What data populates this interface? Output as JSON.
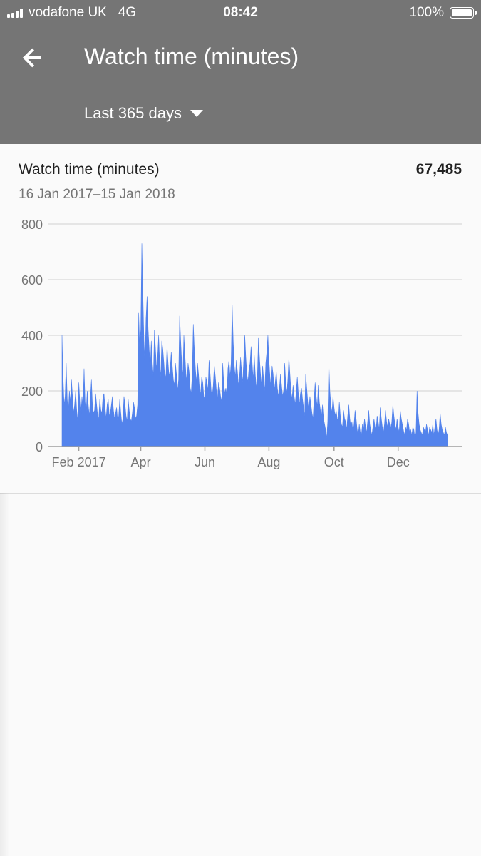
{
  "status_bar": {
    "carrier": "vodafone UK",
    "network": "4G",
    "time": "08:42",
    "battery": "100%",
    "battery_level": 1.0
  },
  "header": {
    "back_icon": "arrow-left-icon",
    "title": "Watch time (minutes)",
    "range_label": "Last 365 days",
    "range_icon": "caret-down-icon"
  },
  "card": {
    "metric_title": "Watch time (minutes)",
    "metric_total": "67,485",
    "date_range": "16 Jan 2017–15 Jan 2018"
  },
  "chart_data": {
    "type": "area",
    "title": "",
    "xlabel": "",
    "ylabel": "",
    "ylim": [
      0,
      800
    ],
    "yticks": [
      0,
      200,
      400,
      600,
      800
    ],
    "xticks": [
      {
        "label": "Feb 2017",
        "day": 16
      },
      {
        "label": "Apr",
        "day": 75
      },
      {
        "label": "Jun",
        "day": 136
      },
      {
        "label": "Aug",
        "day": 197
      },
      {
        "label": "Oct",
        "day": 259
      },
      {
        "label": "Dec",
        "day": 320
      }
    ],
    "grid": true,
    "color": "#5383ec",
    "values": [
      400,
      250,
      150,
      180,
      300,
      170,
      120,
      200,
      160,
      240,
      180,
      120,
      150,
      200,
      130,
      90,
      230,
      160,
      110,
      180,
      140,
      280,
      160,
      120,
      200,
      150,
      110,
      170,
      240,
      150,
      120,
      130,
      190,
      150,
      110,
      100,
      170,
      130,
      120,
      180,
      190,
      140,
      100,
      150,
      170,
      110,
      120,
      150,
      180,
      130,
      100,
      120,
      140,
      90,
      110,
      170,
      120,
      80,
      100,
      180,
      150,
      110,
      90,
      170,
      130,
      100,
      90,
      120,
      160,
      140,
      100,
      110,
      150,
      480,
      350,
      420,
      730,
      550,
      380,
      300,
      460,
      540,
      420,
      350,
      280,
      380,
      300,
      250,
      420,
      350,
      280,
      320,
      400,
      300,
      250,
      380,
      350,
      300,
      240,
      260,
      360,
      300,
      250,
      280,
      340,
      290,
      240,
      220,
      300,
      260,
      200,
      240,
      470,
      380,
      300,
      250,
      400,
      330,
      260,
      230,
      300,
      270,
      210,
      190,
      260,
      440,
      350,
      280,
      230,
      300,
      260,
      200,
      190,
      250,
      230,
      180,
      170,
      250,
      230,
      200,
      310,
      260,
      200,
      180,
      220,
      290,
      250,
      200,
      170,
      230,
      210,
      180,
      160,
      300,
      230,
      190,
      210,
      180,
      280,
      310,
      250,
      300,
      510,
      380,
      290,
      250,
      310,
      270,
      220,
      250,
      320,
      270,
      230,
      310,
      400,
      320,
      260,
      230,
      280,
      300,
      360,
      300,
      240,
      330,
      260,
      210,
      250,
      390,
      320,
      260,
      220,
      290,
      240,
      200,
      300,
      340,
      400,
      310,
      250,
      210,
      290,
      260,
      200,
      230,
      270,
      210,
      180,
      210,
      260,
      220,
      180,
      200,
      300,
      230,
      190,
      240,
      320,
      260,
      200,
      170,
      220,
      180,
      150,
      200,
      250,
      190,
      150,
      190,
      210,
      170,
      140,
      110,
      260,
      210,
      160,
      130,
      180,
      150,
      120,
      100,
      170,
      230,
      180,
      140,
      220,
      160,
      130,
      110,
      150,
      100,
      80,
      60,
      30,
      90,
      300,
      200,
      150,
      120,
      180,
      140,
      110,
      130,
      100,
      90,
      160,
      110,
      80,
      70,
      130,
      100,
      90,
      60,
      110,
      150,
      100,
      70,
      90,
      50,
      80,
      130,
      100,
      60,
      40,
      80,
      50,
      40,
      80,
      60,
      100,
      70,
      50,
      90,
      130,
      80,
      60,
      40,
      70,
      100,
      70,
      60,
      110,
      90,
      60,
      140,
      100,
      70,
      50,
      80,
      130,
      90,
      70,
      100,
      80,
      60,
      90,
      150,
      110,
      80,
      60,
      100,
      70,
      50,
      130,
      100,
      80,
      60,
      40,
      70,
      60,
      100,
      80,
      50,
      60,
      40,
      70,
      60,
      30,
      50,
      200,
      120,
      80,
      60,
      50,
      40,
      70,
      60,
      50,
      80,
      60,
      40,
      70,
      60,
      50,
      80,
      40,
      70,
      100,
      60,
      40,
      60,
      120,
      80,
      60,
      50,
      40,
      70,
      50,
      40
    ]
  }
}
